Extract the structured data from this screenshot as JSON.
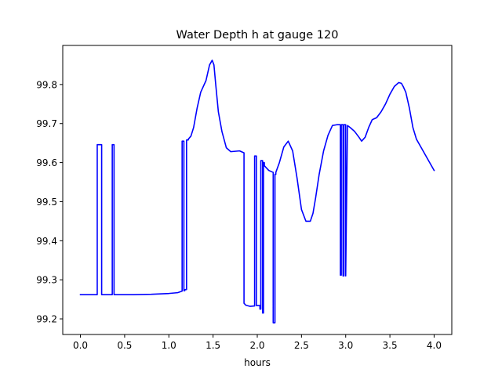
{
  "chart_data": {
    "type": "line",
    "title": "Water Depth h at gauge 120",
    "xlabel": "hours",
    "ylabel": "",
    "xlim": [
      -0.2,
      4.2
    ],
    "ylim": [
      99.16,
      99.9
    ],
    "xticks": [
      0.0,
      0.5,
      1.0,
      1.5,
      2.0,
      2.5,
      3.0,
      3.5,
      4.0
    ],
    "xtick_labels": [
      "0.0",
      "0.5",
      "1.0",
      "1.5",
      "2.0",
      "2.5",
      "3.0",
      "3.5",
      "4.0"
    ],
    "yticks": [
      99.2,
      99.3,
      99.4,
      99.5,
      99.6,
      99.7,
      99.8
    ],
    "ytick_labels": [
      "99.2",
      "99.3",
      "99.4",
      "99.5",
      "99.6",
      "99.7",
      "99.8"
    ],
    "grid": false,
    "series": [
      {
        "color": "#0000ff",
        "x": [
          0.0,
          0.19,
          0.19,
          0.24,
          0.24,
          0.36,
          0.36,
          0.38,
          0.38,
          0.6,
          0.8,
          1.0,
          1.1,
          1.15,
          1.15,
          1.17,
          1.17,
          1.18,
          1.18,
          1.2,
          1.2,
          1.22,
          1.22,
          1.25,
          1.28,
          1.32,
          1.36,
          1.38,
          1.42,
          1.46,
          1.49,
          1.51,
          1.53,
          1.56,
          1.6,
          1.65,
          1.7,
          1.75,
          1.8,
          1.85,
          1.85,
          1.87,
          1.92,
          1.97,
          1.97,
          1.99,
          1.99,
          2.03,
          2.03,
          2.04,
          2.04,
          2.06,
          2.06,
          2.07,
          2.07,
          2.08,
          2.08,
          2.13,
          2.18,
          2.18,
          2.2,
          2.2,
          2.21,
          2.21,
          2.25,
          2.3,
          2.35,
          2.4,
          2.45,
          2.5,
          2.55,
          2.6,
          2.63,
          2.66,
          2.7,
          2.75,
          2.8,
          2.85,
          2.9,
          2.94,
          2.94,
          2.95,
          2.95,
          2.97,
          2.97,
          2.98,
          2.98,
          3.0,
          3.0,
          3.02,
          3.05,
          3.1,
          3.15,
          3.18,
          3.22,
          3.26,
          3.3,
          3.35,
          3.4,
          3.45,
          3.5,
          3.55,
          3.6,
          3.63,
          3.65,
          3.68,
          3.72,
          3.76,
          3.8,
          3.85,
          3.9,
          3.95,
          4.0
        ],
        "y": [
          99.262,
          99.262,
          99.646,
          99.646,
          99.262,
          99.262,
          99.646,
          99.646,
          99.262,
          99.262,
          99.263,
          99.265,
          99.267,
          99.271,
          99.655,
          99.655,
          99.272,
          99.272,
          99.275,
          99.275,
          99.658,
          99.658,
          99.66,
          99.668,
          99.69,
          99.74,
          99.78,
          99.79,
          99.81,
          99.85,
          99.862,
          99.85,
          99.8,
          99.73,
          99.68,
          99.638,
          99.628,
          99.629,
          99.63,
          99.625,
          99.24,
          99.235,
          99.232,
          99.233,
          99.617,
          99.617,
          99.234,
          99.234,
          99.225,
          99.225,
          99.605,
          99.605,
          99.215,
          99.215,
          99.6,
          99.6,
          99.592,
          99.58,
          99.575,
          99.19,
          99.19,
          99.57,
          99.57,
          99.575,
          99.6,
          99.64,
          99.655,
          99.63,
          99.56,
          99.48,
          99.45,
          99.45,
          99.47,
          99.51,
          99.57,
          99.63,
          99.67,
          99.695,
          99.697,
          99.697,
          99.312,
          99.312,
          99.697,
          99.697,
          99.31,
          99.31,
          99.697,
          99.697,
          99.31,
          99.695,
          99.69,
          99.68,
          99.665,
          99.655,
          99.665,
          99.69,
          99.71,
          99.715,
          99.73,
          99.75,
          99.775,
          99.795,
          99.805,
          99.803,
          99.795,
          99.78,
          99.74,
          99.69,
          99.66,
          99.64,
          99.62,
          99.6,
          99.58
        ]
      }
    ]
  }
}
